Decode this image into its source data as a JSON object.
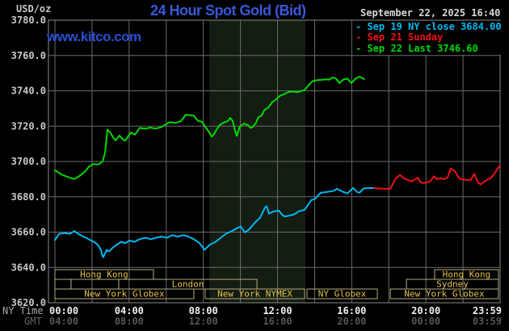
{
  "header": {
    "unit": "USD/oz",
    "title": "24 Hour Spot Gold (Bid)",
    "datetime": "September 22, 2025 16:40",
    "watermark": "www.kitco.com"
  },
  "legend": [
    {
      "label": "- Sep 19 NY close 3684.00",
      "color": "#00b8f0"
    },
    {
      "label": "- Sep 21 Sunday",
      "color": "#ee1016"
    },
    {
      "label": "- Sep 22 Last 3746.60",
      "color": "#00d800"
    }
  ],
  "chart_data": {
    "type": "line",
    "title": "24 Hour Spot Gold (Bid)",
    "y_axis": {
      "unit": "USD/oz",
      "min": 3620,
      "max": 3780,
      "tick_interval": 20,
      "ticks": [
        "3780.0",
        "3760.0",
        "3740.0",
        "3720.0",
        "3700.0",
        "3680.0",
        "3660.0",
        "3640.0",
        "3620.0"
      ]
    },
    "x_axis": {
      "ny_label": "NY Time",
      "gmt_label": "GMT",
      "gridline_interval_hours": 2,
      "range_hours": [
        0,
        24
      ],
      "ticks": [
        {
          "hour": 0,
          "ny": "00:00",
          "gmt": "04:00"
        },
        {
          "hour": 4,
          "ny": "04:00",
          "gmt": "08:00"
        },
        {
          "hour": 8,
          "ny": "08:00",
          "gmt": "12:00"
        },
        {
          "hour": 12,
          "ny": "12:00",
          "gmt": "16:00"
        },
        {
          "hour": 16,
          "ny": "16:00",
          "gmt": "20:00"
        },
        {
          "hour": 20,
          "ny": "20:00",
          "gmt": "00:00"
        },
        {
          "hour": 24,
          "ny": "23:59",
          "gmt": "03:59"
        }
      ]
    },
    "shaded_session": {
      "start_hour": 8.33,
      "end_hour": 13.5,
      "color": "#141d12"
    },
    "series": [
      {
        "id": "sep19",
        "name": "Sep 19 NY close 3684.00",
        "color": "#00b8f0",
        "points": [
          [
            0,
            3655.5
          ],
          [
            0.22,
            3659
          ],
          [
            0.52,
            3659.5
          ],
          [
            0.78,
            3659
          ],
          [
            1.05,
            3660.6
          ],
          [
            1.26,
            3659
          ],
          [
            1.52,
            3657.5
          ],
          [
            1.74,
            3656.5
          ],
          [
            1.96,
            3655.2
          ],
          [
            2.18,
            3654
          ],
          [
            2.35,
            3652.2
          ],
          [
            2.48,
            3649.9
          ],
          [
            2.57,
            3646.2
          ],
          [
            2.61,
            3645.8
          ],
          [
            2.79,
            3649.9
          ],
          [
            2.92,
            3649.1
          ],
          [
            3.14,
            3651.4
          ],
          [
            3.35,
            3652.9
          ],
          [
            3.57,
            3654.5
          ],
          [
            3.79,
            3653.7
          ],
          [
            4.01,
            3655.2
          ],
          [
            4.31,
            3654.5
          ],
          [
            4.57,
            3656
          ],
          [
            4.88,
            3656.8
          ],
          [
            5.18,
            3656
          ],
          [
            5.44,
            3656.8
          ],
          [
            5.75,
            3657.5
          ],
          [
            6.05,
            3656.8
          ],
          [
            6.32,
            3658.3
          ],
          [
            6.62,
            3657.5
          ],
          [
            6.93,
            3658.3
          ],
          [
            7.19,
            3657.5
          ],
          [
            7.49,
            3656
          ],
          [
            7.8,
            3653.7
          ],
          [
            8.06,
            3649.9
          ],
          [
            8.36,
            3652.9
          ],
          [
            8.67,
            3654.5
          ],
          [
            8.93,
            3656.8
          ],
          [
            9.23,
            3659.1
          ],
          [
            9.54,
            3660.6
          ],
          [
            9.8,
            3662.1
          ],
          [
            10.02,
            3663.2
          ],
          [
            10.23,
            3659.8
          ],
          [
            10.45,
            3661.3
          ],
          [
            10.76,
            3665.1
          ],
          [
            11.06,
            3668.2
          ],
          [
            11.32,
            3673.8
          ],
          [
            11.41,
            3674.7
          ],
          [
            11.54,
            3670.4
          ],
          [
            11.76,
            3671.6
          ],
          [
            12.06,
            3672.2
          ],
          [
            12.28,
            3669.5
          ],
          [
            12.41,
            3668.8
          ],
          [
            12.72,
            3669.5
          ],
          [
            12.94,
            3670.3
          ],
          [
            13.15,
            3671.8
          ],
          [
            13.46,
            3672.6
          ],
          [
            13.81,
            3678
          ],
          [
            14.02,
            3678.9
          ],
          [
            14.33,
            3682.3
          ],
          [
            14.68,
            3682.7
          ],
          [
            15.03,
            3683.4
          ],
          [
            15.2,
            3684.5
          ],
          [
            15.55,
            3682.7
          ],
          [
            15.77,
            3681.9
          ],
          [
            16.07,
            3685
          ],
          [
            16.29,
            3682.7
          ],
          [
            16.42,
            3682.3
          ],
          [
            16.64,
            3684.7
          ],
          [
            16.9,
            3684.9
          ],
          [
            17.21,
            3684.9
          ]
        ]
      },
      {
        "id": "sep21",
        "name": "Sep 21 Sunday",
        "color": "#ee1016",
        "points": [
          [
            17.21,
            3684.9
          ],
          [
            17.51,
            3684.7
          ],
          [
            17.86,
            3684.5
          ],
          [
            18.08,
            3684.5
          ],
          [
            18.25,
            3688
          ],
          [
            18.38,
            3690.5
          ],
          [
            18.51,
            3691.5
          ],
          [
            18.6,
            3692.4
          ],
          [
            18.82,
            3690.5
          ],
          [
            19.03,
            3689.5
          ],
          [
            19.25,
            3688.7
          ],
          [
            19.43,
            3690
          ],
          [
            19.56,
            3690.8
          ],
          [
            19.69,
            3688.5
          ],
          [
            19.82,
            3687.8
          ],
          [
            20.04,
            3688
          ],
          [
            20.25,
            3689
          ],
          [
            20.43,
            3691.6
          ],
          [
            20.6,
            3690
          ],
          [
            20.78,
            3690.5
          ],
          [
            21,
            3690
          ],
          [
            21.17,
            3691
          ],
          [
            21.34,
            3696
          ],
          [
            21.47,
            3695
          ],
          [
            21.56,
            3694.6
          ],
          [
            21.73,
            3691.5
          ],
          [
            21.86,
            3690
          ],
          [
            22.08,
            3689.7
          ],
          [
            22.3,
            3689.5
          ],
          [
            22.43,
            3689.7
          ],
          [
            22.6,
            3693
          ],
          [
            22.73,
            3690
          ],
          [
            22.82,
            3688
          ],
          [
            22.95,
            3687
          ],
          [
            23.08,
            3688
          ],
          [
            23.3,
            3689.7
          ],
          [
            23.48,
            3690.5
          ],
          [
            23.65,
            3692.5
          ],
          [
            23.78,
            3694.5
          ],
          [
            23.91,
            3696.5
          ],
          [
            24,
            3697.7
          ]
        ]
      },
      {
        "id": "sep22",
        "name": "Sep 22 Last 3746.60",
        "color": "#00d800",
        "points": [
          [
            0,
            3695
          ],
          [
            0.39,
            3692.4
          ],
          [
            0.74,
            3691
          ],
          [
            1.05,
            3690.1
          ],
          [
            1.31,
            3691.7
          ],
          [
            1.61,
            3694.2
          ],
          [
            1.83,
            3697
          ],
          [
            2.05,
            3698.5
          ],
          [
            2.35,
            3698.3
          ],
          [
            2.57,
            3700
          ],
          [
            2.7,
            3705
          ],
          [
            2.83,
            3718
          ],
          [
            3.01,
            3716
          ],
          [
            3.14,
            3713.5
          ],
          [
            3.27,
            3712
          ],
          [
            3.48,
            3714.7
          ],
          [
            3.66,
            3712.5
          ],
          [
            3.79,
            3711.8
          ],
          [
            4.09,
            3716.3
          ],
          [
            4.31,
            3715.2
          ],
          [
            4.57,
            3719
          ],
          [
            4.88,
            3718.5
          ],
          [
            5.14,
            3719.2
          ],
          [
            5.44,
            3718.6
          ],
          [
            5.75,
            3719.5
          ],
          [
            5.97,
            3721
          ],
          [
            6.19,
            3722.3
          ],
          [
            6.49,
            3721.8
          ],
          [
            6.79,
            3722.8
          ],
          [
            7.06,
            3726.5
          ],
          [
            7.36,
            3726
          ],
          [
            7.49,
            3725.9
          ],
          [
            7.71,
            3723
          ],
          [
            7.93,
            3722.5
          ],
          [
            8.14,
            3719
          ],
          [
            8.32,
            3716.5
          ],
          [
            8.45,
            3714
          ],
          [
            8.58,
            3715.5
          ],
          [
            8.71,
            3718
          ],
          [
            8.88,
            3720.6
          ],
          [
            9.1,
            3722
          ],
          [
            9.32,
            3722.9
          ],
          [
            9.45,
            3724.7
          ],
          [
            9.58,
            3723
          ],
          [
            9.71,
            3717.5
          ],
          [
            9.8,
            3714.4
          ],
          [
            9.97,
            3719.8
          ],
          [
            10.19,
            3721.4
          ],
          [
            10.41,
            3720.6
          ],
          [
            10.54,
            3719
          ],
          [
            10.67,
            3719.5
          ],
          [
            10.84,
            3722
          ],
          [
            10.97,
            3725.1
          ],
          [
            11.15,
            3726
          ],
          [
            11.28,
            3729
          ],
          [
            11.5,
            3730.5
          ],
          [
            11.71,
            3733.6
          ],
          [
            11.93,
            3735.1
          ],
          [
            12.15,
            3737.3
          ],
          [
            12.37,
            3738.2
          ],
          [
            12.59,
            3739.3
          ],
          [
            12.85,
            3739.6
          ],
          [
            13.07,
            3739.2
          ],
          [
            13.24,
            3739.8
          ],
          [
            13.46,
            3740.3
          ],
          [
            13.68,
            3743.4
          ],
          [
            13.89,
            3745.4
          ],
          [
            14.11,
            3746
          ],
          [
            14.37,
            3746.2
          ],
          [
            14.59,
            3746.5
          ],
          [
            14.77,
            3746.3
          ],
          [
            14.98,
            3747.5
          ],
          [
            15.16,
            3746.9
          ],
          [
            15.33,
            3744.4
          ],
          [
            15.55,
            3746.4
          ],
          [
            15.77,
            3746.9
          ],
          [
            15.98,
            3744.4
          ],
          [
            16.2,
            3746.9
          ],
          [
            16.42,
            3748
          ],
          [
            16.55,
            3747.3
          ],
          [
            16.67,
            3746.6
          ]
        ]
      }
    ],
    "market_sessions": {
      "rows": [
        [
          {
            "label": "Hong Kong",
            "start": 0,
            "end": 5.31
          },
          {
            "label": "Hong Kong",
            "start": 20.47,
            "end": 23.91
          }
        ],
        [
          {
            "label": "",
            "start": 0,
            "end": 0.87
          },
          {
            "label": "",
            "start": 0.87,
            "end": 3.44
          },
          {
            "label": "London",
            "start": 3.44,
            "end": 10.89
          },
          {
            "label": "Sydney",
            "start": 18.95,
            "end": 23.91
          }
        ],
        [
          {
            "label": "New York Globex",
            "start": 0,
            "end": 7.49
          },
          {
            "label": "New York NYMEX",
            "start": 8.1,
            "end": 13.46
          },
          {
            "label": "NY Globex",
            "start": 13.59,
            "end": 17.38
          },
          {
            "label": "New York Globex",
            "start": 18.08,
            "end": 23.91
          }
        ]
      ]
    },
    "colors": {
      "grid": "#6a6a6a",
      "border": "#8a8a8a",
      "session_box": "#b3ab7f",
      "session_text": "#e3c24b",
      "tick_ny": "#f0f0f0",
      "tick_gmt": "#565656",
      "y_label": "#c8c8c8"
    }
  }
}
